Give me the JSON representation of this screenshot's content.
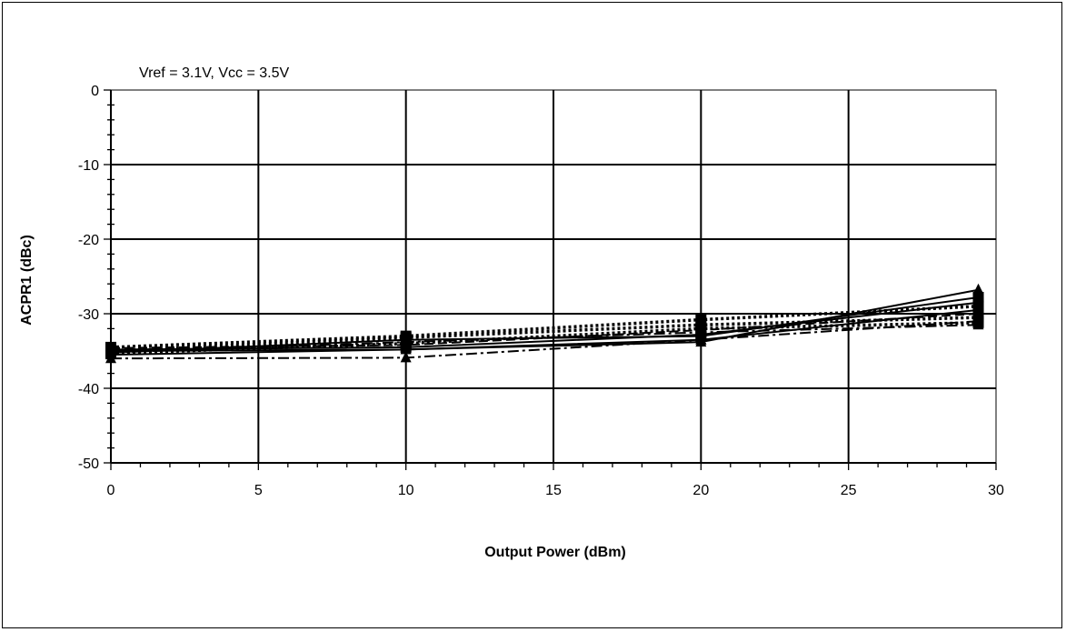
{
  "chart_data": {
    "type": "line",
    "annotation": "Vref = 3.1V, Vcc = 3.5V",
    "xlabel": "Output Power (dBm)",
    "ylabel": "ACPR1 (dBc)",
    "xlim": [
      0,
      30
    ],
    "ylim": [
      -50,
      0
    ],
    "x_ticks": [
      "0",
      "5",
      "10",
      "15",
      "20",
      "25",
      "30"
    ],
    "y_ticks": [
      "0",
      "-10",
      "-20",
      "-30",
      "-40",
      "-50"
    ],
    "grid": true,
    "legend": "none",
    "x": [
      0,
      10,
      20,
      29.4
    ],
    "series": [
      {
        "style": "solid",
        "marker": "triangle",
        "values": [
          -35.5,
          -34.8,
          -33.8,
          -26.8
        ]
      },
      {
        "style": "solid",
        "marker": "square",
        "values": [
          -35.2,
          -33.5,
          -33.0,
          -27.8
        ]
      },
      {
        "style": "solid",
        "marker": "square",
        "values": [
          -34.8,
          -34.5,
          -32.8,
          -28.5
        ]
      },
      {
        "style": "solid",
        "marker": "triangle",
        "values": [
          -35.0,
          -34.8,
          -33.5,
          -29.5
        ]
      },
      {
        "style": "dot",
        "marker": "square",
        "values": [
          -34.5,
          -33.0,
          -30.8,
          -29.0
        ]
      },
      {
        "style": "dot",
        "marker": "square",
        "values": [
          -35.0,
          -33.2,
          -31.5,
          -30.5
        ]
      },
      {
        "style": "dot",
        "marker": "square",
        "values": [
          -35.3,
          -34.0,
          -32.0,
          -31.2
        ]
      },
      {
        "style": "dashdot",
        "marker": "triangle",
        "values": [
          -36.0,
          -35.9,
          -33.5,
          -31.0
        ]
      },
      {
        "style": "dashdot",
        "marker": "triangle",
        "values": [
          -35.2,
          -33.8,
          -32.5,
          -31.5
        ]
      },
      {
        "style": "dash",
        "marker": "square",
        "values": [
          -34.6,
          -34.2,
          -32.2,
          -30.0
        ]
      }
    ]
  }
}
